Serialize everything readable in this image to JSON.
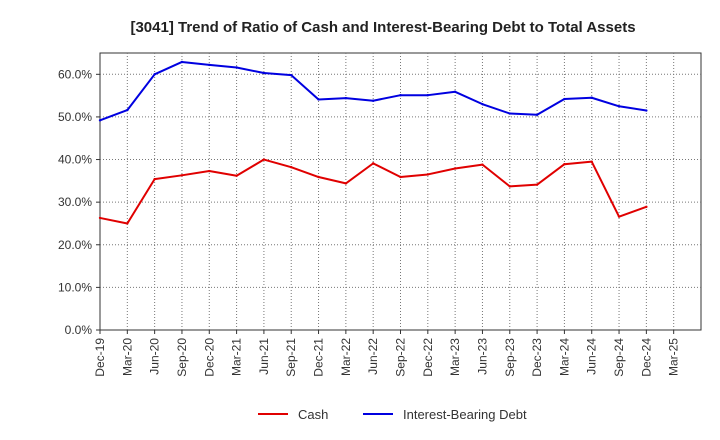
{
  "chart_data": {
    "type": "line",
    "title": "[3041]  Trend of Ratio of Cash and Interest-Bearing Debt to Total Assets",
    "xlabel": "",
    "ylabel": "",
    "categories": [
      "Dec-19",
      "Mar-20",
      "Jun-20",
      "Sep-20",
      "Dec-20",
      "Mar-21",
      "Jun-21",
      "Sep-21",
      "Dec-21",
      "Mar-22",
      "Jun-22",
      "Sep-22",
      "Dec-22",
      "Mar-23",
      "Jun-23",
      "Sep-23",
      "Dec-23",
      "Mar-24",
      "Jun-24",
      "Sep-24",
      "Dec-24",
      "Mar-25"
    ],
    "ylim": [
      0,
      65
    ],
    "yticks": [
      0,
      10,
      20,
      30,
      40,
      50,
      60
    ],
    "ytick_labels": [
      "0.0%",
      "10.0%",
      "20.0%",
      "30.0%",
      "40.0%",
      "50.0%",
      "60.0%"
    ],
    "grid": true,
    "legend_position": "bottom",
    "series": [
      {
        "name": "Cash",
        "color": "#e00000",
        "values": [
          26.3,
          25.0,
          35.4,
          36.3,
          37.3,
          36.2,
          40.0,
          38.2,
          35.9,
          34.4,
          39.1,
          35.9,
          36.5,
          37.9,
          38.8,
          33.7,
          34.1,
          38.9,
          39.5,
          26.6,
          28.9,
          null
        ]
      },
      {
        "name": "Interest-Bearing Debt",
        "color": "#0000e0",
        "values": [
          49.2,
          51.6,
          60.0,
          62.9,
          62.2,
          61.6,
          60.3,
          59.8,
          54.1,
          54.4,
          53.8,
          55.1,
          55.1,
          55.9,
          53.0,
          50.8,
          50.5,
          54.2,
          54.5,
          52.5,
          51.5,
          null
        ]
      }
    ]
  }
}
